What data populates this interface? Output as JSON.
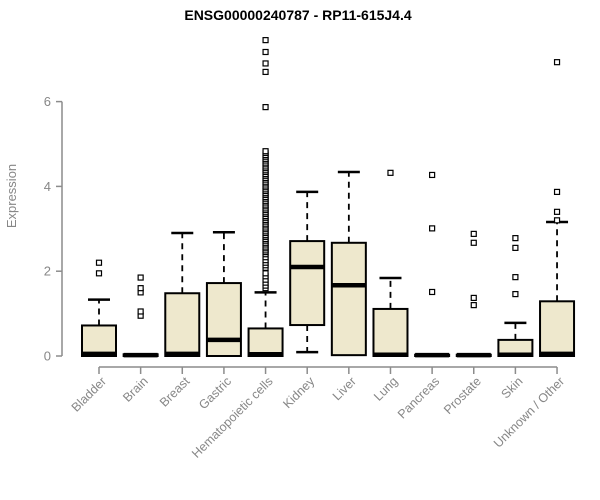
{
  "chart_data": {
    "type": "boxplot",
    "title": "ENSG00000240787 - RP11-615J4.4",
    "ylabel": "Expression",
    "xlabel": "",
    "yticks": [
      0,
      2,
      4,
      6
    ],
    "ylim": [
      0,
      7.5
    ],
    "grid": false,
    "legend_position": "none",
    "colors": {
      "box_fill": "#EEE8CD",
      "box_stroke": "#000000",
      "median": "#000000",
      "whisker": "#000000",
      "outlier_stroke": "#000000",
      "outlier_fill": "#FFFFFF",
      "axis": "#8C8C8C",
      "tick_label": "#878787",
      "title": "#000000",
      "background": "#FFFFFF"
    },
    "boxes": [
      {
        "label": "Bladder",
        "q1": 0,
        "median": 0.05,
        "q3": 0.72,
        "whisker_low": 0,
        "whisker_high": 1.33,
        "outliers": [
          1.95,
          2.2
        ]
      },
      {
        "label": "Brain",
        "q1": 0,
        "median": 0.02,
        "q3": 0.04,
        "whisker_low": 0,
        "whisker_high": 0.04,
        "outliers": [
          0.95,
          1.05,
          1.5,
          1.6,
          1.85
        ]
      },
      {
        "label": "Breast",
        "q1": 0,
        "median": 0.05,
        "q3": 1.48,
        "whisker_low": 0,
        "whisker_high": 2.9,
        "outliers": []
      },
      {
        "label": "Gastric",
        "q1": 0,
        "median": 0.38,
        "q3": 1.72,
        "whisker_low": 0,
        "whisker_high": 2.92,
        "outliers": []
      },
      {
        "label": "Hematopoietic cells",
        "q1": 0,
        "median": 0.04,
        "q3": 0.65,
        "whisker_low": 0,
        "whisker_high": 1.5,
        "outliers": [
          1.6,
          1.66,
          1.73,
          1.8,
          1.88,
          1.95,
          2.08,
          2.14,
          2.2,
          2.26,
          2.33,
          2.4,
          2.45,
          2.49,
          2.54,
          2.58,
          2.63,
          2.67,
          2.72,
          2.76,
          2.81,
          2.85,
          2.9,
          2.94,
          2.99,
          3.03,
          3.08,
          3.12,
          3.17,
          3.21,
          3.26,
          3.3,
          3.35,
          3.39,
          3.44,
          3.48,
          3.53,
          3.57,
          3.62,
          3.66,
          3.71,
          3.75,
          3.8,
          3.84,
          3.89,
          3.93,
          3.98,
          4.02,
          4.07,
          4.11,
          4.16,
          4.2,
          4.25,
          4.29,
          4.34,
          4.38,
          4.43,
          4.47,
          4.52,
          4.56,
          4.61,
          4.65,
          4.7,
          4.74,
          4.79,
          4.83,
          5.87,
          6.7,
          6.9,
          7.17,
          7.45
        ]
      },
      {
        "label": "Kidney",
        "q1": 0.73,
        "median": 2.1,
        "q3": 2.71,
        "whisker_low": 0.09,
        "whisker_high": 3.87,
        "outliers": []
      },
      {
        "label": "Liver",
        "q1": 0.02,
        "median": 1.67,
        "q3": 2.67,
        "whisker_low": 0.02,
        "whisker_high": 4.34,
        "outliers": []
      },
      {
        "label": "Lung",
        "q1": 0,
        "median": 0.03,
        "q3": 1.11,
        "whisker_low": 0,
        "whisker_high": 1.84,
        "outliers": [
          4.32
        ]
      },
      {
        "label": "Pancreas",
        "q1": 0,
        "median": 0.02,
        "q3": 0.03,
        "whisker_low": 0,
        "whisker_high": 0.03,
        "outliers": [
          1.51,
          3.01,
          4.27
        ]
      },
      {
        "label": "Prostate",
        "q1": 0,
        "median": 0.02,
        "q3": 0.03,
        "whisker_low": 0,
        "whisker_high": 0.03,
        "outliers": [
          1.2,
          1.37,
          2.67,
          2.88
        ]
      },
      {
        "label": "Skin",
        "q1": 0,
        "median": 0.03,
        "q3": 0.38,
        "whisker_low": 0,
        "whisker_high": 0.78,
        "outliers": [
          1.46,
          1.86,
          2.55,
          2.78
        ]
      },
      {
        "label": "Unknown / Other",
        "q1": 0,
        "median": 0.05,
        "q3": 1.29,
        "whisker_low": 0,
        "whisker_high": 3.16,
        "outliers": [
          3.2,
          3.4,
          3.87,
          6.93
        ]
      }
    ]
  }
}
